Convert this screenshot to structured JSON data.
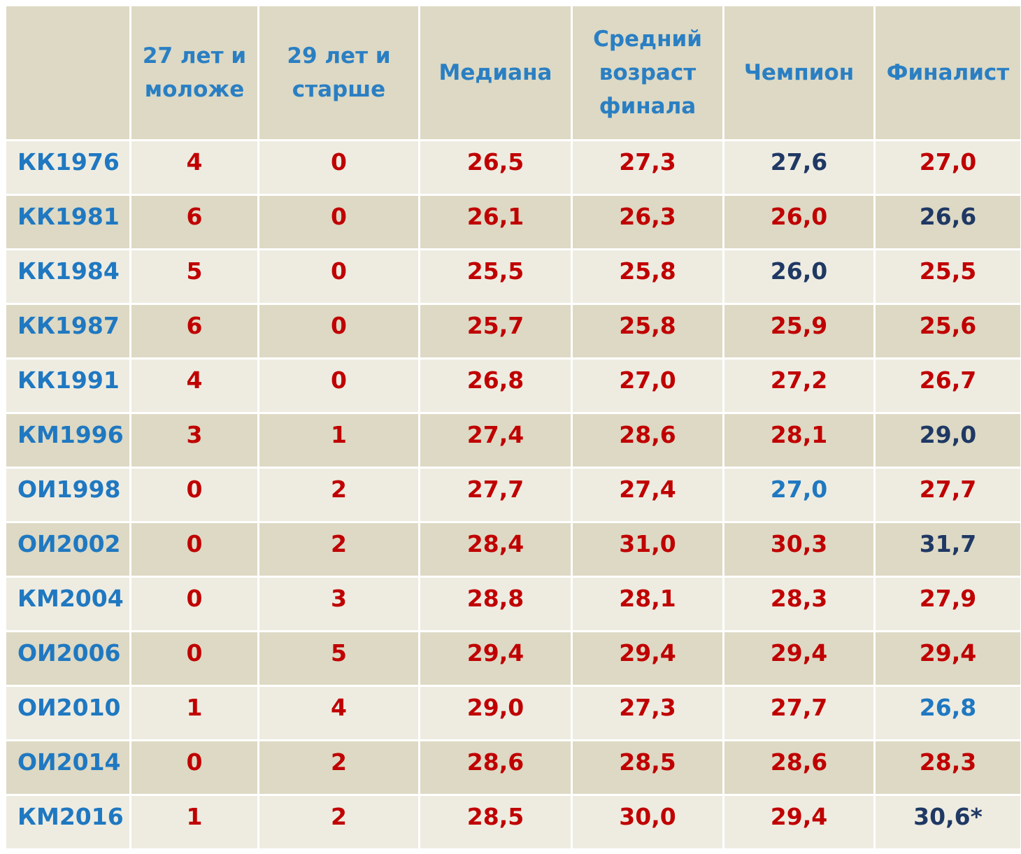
{
  "header": {
    "corner": "",
    "columns": [
      "27 лет и\nмоложе",
      "29 лет и\nстарше",
      "Медиана",
      "Средний\nвозраст\nфинала",
      "Чемпион",
      "Финалист"
    ]
  },
  "colors": {
    "red": "#c00000",
    "navy": "#1f3864",
    "blue": "#1f78c1",
    "header_bg": "#ddd9c4",
    "row_light": "#eeece1",
    "row_dark": "#ddd9c4"
  },
  "rows": [
    {
      "label": "КК1976",
      "young": "4",
      "old": "0",
      "median": "26,5",
      "avg_final": "27,3",
      "champion": "27,6",
      "champion_color": "navy",
      "finalist": "27,0",
      "finalist_color": "red"
    },
    {
      "label": "КК1981",
      "young": "6",
      "old": "0",
      "median": "26,1",
      "avg_final": "26,3",
      "champion": "26,0",
      "champion_color": "red",
      "finalist": "26,6",
      "finalist_color": "navy"
    },
    {
      "label": "КК1984",
      "young": "5",
      "old": "0",
      "median": "25,5",
      "avg_final": "25,8",
      "champion": "26,0",
      "champion_color": "navy",
      "finalist": "25,5",
      "finalist_color": "red"
    },
    {
      "label": "КК1987",
      "young": "6",
      "old": "0",
      "median": "25,7",
      "avg_final": "25,8",
      "champion": "25,9",
      "champion_color": "red",
      "finalist": "25,6",
      "finalist_color": "red"
    },
    {
      "label": "КК1991",
      "young": "4",
      "old": "0",
      "median": "26,8",
      "avg_final": "27,0",
      "champion": "27,2",
      "champion_color": "red",
      "finalist": "26,7",
      "finalist_color": "red"
    },
    {
      "label": "КМ1996",
      "young": "3",
      "old": "1",
      "median": "27,4",
      "avg_final": "28,6",
      "champion": "28,1",
      "champion_color": "red",
      "finalist": "29,0",
      "finalist_color": "navy"
    },
    {
      "label": "ОИ1998",
      "young": "0",
      "old": "2",
      "median": "27,7",
      "avg_final": "27,4",
      "champion": "27,0",
      "champion_color": "blue",
      "finalist": "27,7",
      "finalist_color": "red"
    },
    {
      "label": "ОИ2002",
      "young": "0",
      "old": "2",
      "median": "28,4",
      "avg_final": "31,0",
      "champion": "30,3",
      "champion_color": "red",
      "finalist": "31,7",
      "finalist_color": "navy"
    },
    {
      "label": "КМ2004",
      "young": "0",
      "old": "3",
      "median": "28,8",
      "avg_final": "28,1",
      "champion": "28,3",
      "champion_color": "red",
      "finalist": "27,9",
      "finalist_color": "red"
    },
    {
      "label": "ОИ2006",
      "young": "0",
      "old": "5",
      "median": "29,4",
      "avg_final": "29,4",
      "champion": "29,4",
      "champion_color": "red",
      "finalist": "29,4",
      "finalist_color": "red"
    },
    {
      "label": "ОИ2010",
      "young": "1",
      "old": "4",
      "median": "29,0",
      "avg_final": "27,3",
      "champion": "27,7",
      "champion_color": "red",
      "finalist": "26,8",
      "finalist_color": "blue"
    },
    {
      "label": "ОИ2014",
      "young": "0",
      "old": "2",
      "median": "28,6",
      "avg_final": "28,5",
      "champion": "28,6",
      "champion_color": "red",
      "finalist": "28,3",
      "finalist_color": "red"
    },
    {
      "label": "КМ2016",
      "young": "1",
      "old": "2",
      "median": "28,5",
      "avg_final": "30,0",
      "champion": "29,4",
      "champion_color": "red",
      "finalist": "30,6*",
      "finalist_color": "navy"
    }
  ]
}
